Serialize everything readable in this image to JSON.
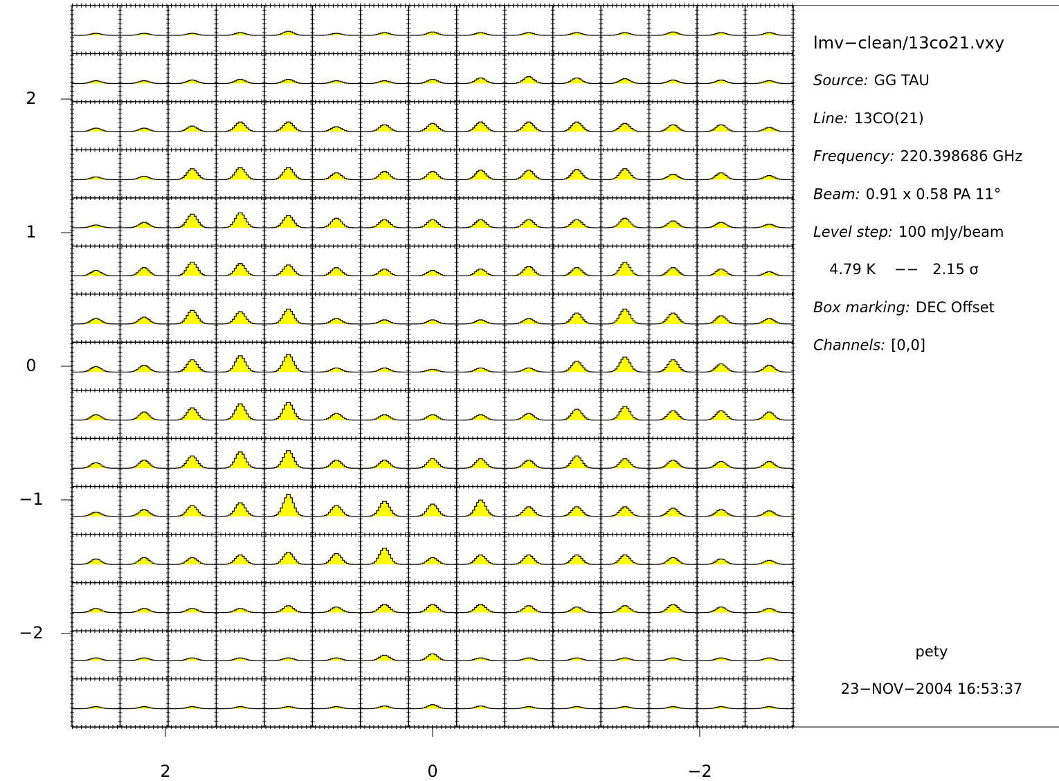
{
  "chart_data": {
    "type": "spectra-grid",
    "xlim": [
      2.7,
      -2.7
    ],
    "ylim": [
      -2.7,
      2.7
    ],
    "xticks": [
      2,
      0,
      {
        "value": -2,
        "label": "−2"
      }
    ],
    "yticks": [
      {
        "value": -2,
        "label": "−2"
      },
      {
        "value": -1,
        "label": "−1"
      },
      0,
      1,
      2
    ],
    "fill_color": "#ffff00",
    "peaks": [
      [
        3,
        3,
        3,
        4,
        6,
        3,
        4,
        5,
        4,
        4,
        4,
        4,
        5,
        4,
        4
      ],
      [
        4,
        4,
        5,
        6,
        6,
        4,
        4,
        6,
        8,
        10,
        8,
        7,
        5,
        5,
        4
      ],
      [
        5,
        5,
        8,
        14,
        14,
        7,
        10,
        12,
        14,
        14,
        14,
        12,
        10,
        10,
        6
      ],
      [
        4,
        5,
        16,
        18,
        18,
        10,
        12,
        12,
        14,
        14,
        15,
        16,
        8,
        10,
        6
      ],
      [
        4,
        8,
        20,
        22,
        18,
        14,
        12,
        12,
        12,
        12,
        12,
        14,
        10,
        8,
        5
      ],
      [
        8,
        12,
        20,
        18,
        16,
        12,
        10,
        8,
        10,
        14,
        12,
        20,
        12,
        10,
        6
      ],
      [
        8,
        10,
        20,
        18,
        22,
        8,
        6,
        6,
        6,
        8,
        16,
        22,
        16,
        12,
        8
      ],
      [
        8,
        10,
        18,
        24,
        26,
        6,
        6,
        4,
        6,
        6,
        16,
        22,
        18,
        12,
        10
      ],
      [
        8,
        12,
        18,
        24,
        26,
        10,
        8,
        8,
        8,
        10,
        16,
        20,
        14,
        14,
        12
      ],
      [
        8,
        12,
        18,
        24,
        26,
        12,
        12,
        14,
        14,
        12,
        18,
        14,
        12,
        10,
        10
      ],
      [
        6,
        10,
        16,
        20,
        32,
        16,
        22,
        18,
        24,
        14,
        14,
        14,
        12,
        10,
        8
      ],
      [
        8,
        10,
        10,
        14,
        18,
        16,
        24,
        10,
        14,
        14,
        14,
        14,
        10,
        8,
        6
      ],
      [
        6,
        6,
        6,
        6,
        10,
        8,
        12,
        12,
        12,
        10,
        8,
        10,
        12,
        8,
        6
      ],
      [
        4,
        4,
        4,
        4,
        4,
        4,
        8,
        10,
        4,
        4,
        4,
        4,
        4,
        4,
        4
      ],
      [
        3,
        3,
        3,
        3,
        3,
        3,
        4,
        6,
        4,
        3,
        3,
        3,
        3,
        3,
        3
      ]
    ]
  },
  "info": {
    "title": "lmv−clean/13co21.vxy",
    "items": [
      {
        "label": "Source:",
        "value": "GG TAU"
      },
      {
        "label": "Line:",
        "value": "13CO(21)"
      },
      {
        "label": "Frequency:",
        "value": "220.398686 GHz"
      },
      {
        "label": "Beam:",
        "value": "0.91 x 0.58 PA 11°"
      },
      {
        "label": "Level step:",
        "value": "100 mJy/beam"
      }
    ],
    "level_note": "4.79 K    −−   2.15 σ",
    "items2": [
      {
        "label": "Box marking:",
        "value": "DEC Offset"
      },
      {
        "label": "Channels:",
        "value": "[0,0]"
      }
    ],
    "user": "pety",
    "date": "23−NOV−2004 16:53:37"
  }
}
